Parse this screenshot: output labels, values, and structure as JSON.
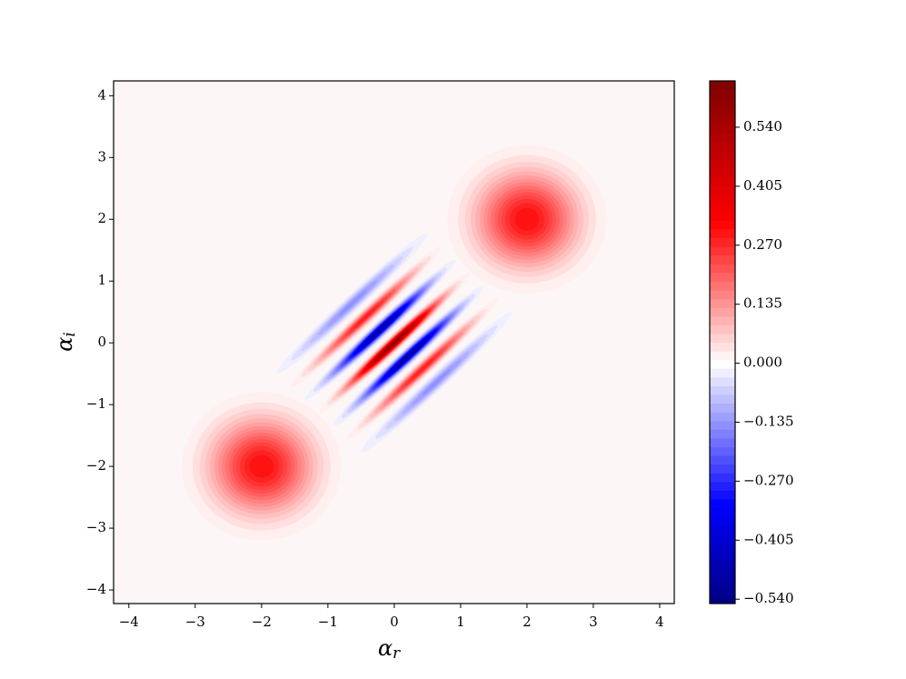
{
  "chart_data": {
    "type": "contour",
    "xlabel": [
      "α",
      "r"
    ],
    "ylabel": [
      "α",
      "i"
    ],
    "xlim": [
      -4.23,
      4.22
    ],
    "ylim": [
      -4.22,
      4.24
    ],
    "xticks": [
      {
        "value": -4,
        "label": "−4"
      },
      {
        "value": -3,
        "label": "−3"
      },
      {
        "value": -2,
        "label": "−2"
      },
      {
        "value": -1,
        "label": "−1"
      },
      0,
      1,
      2,
      3,
      4
    ],
    "yticks": [
      {
        "value": -4,
        "label": "−4"
      },
      {
        "value": -3,
        "label": "−3"
      },
      {
        "value": -2,
        "label": "−2"
      },
      {
        "value": -1,
        "label": "−1"
      },
      0,
      1,
      2,
      3,
      4
    ],
    "clim": [
      -0.55,
      0.646
    ],
    "cticks": [
      {
        "value": -0.54,
        "label": "−0.540"
      },
      {
        "value": -0.405,
        "label": "−0.405"
      },
      {
        "value": -0.27,
        "label": "−0.270"
      },
      {
        "value": -0.135,
        "label": "−0.135"
      },
      {
        "value": 0,
        "label": "0.000"
      },
      {
        "value": 0.135,
        "label": "0.135"
      },
      {
        "value": 0.27,
        "label": "0.270"
      },
      {
        "value": 0.405,
        "label": "0.405"
      },
      {
        "value": 0.54,
        "label": "0.540"
      }
    ],
    "colormap": "seismic",
    "peaks": [
      {
        "x": -2,
        "y": -2,
        "value": 0.32,
        "radius": 1.2
      },
      {
        "x": 2,
        "y": 2,
        "value": 0.32,
        "radius": 1.2
      }
    ],
    "fringes": {
      "angle": 45,
      "length": 1.6,
      "width": 0.13,
      "offsets": [
        -0.9,
        -0.6,
        -0.3,
        0,
        0.3,
        0.6,
        0.9
      ],
      "values": [
        -0.15,
        0.3,
        -0.5,
        0.6,
        -0.5,
        0.3,
        -0.15
      ]
    }
  }
}
